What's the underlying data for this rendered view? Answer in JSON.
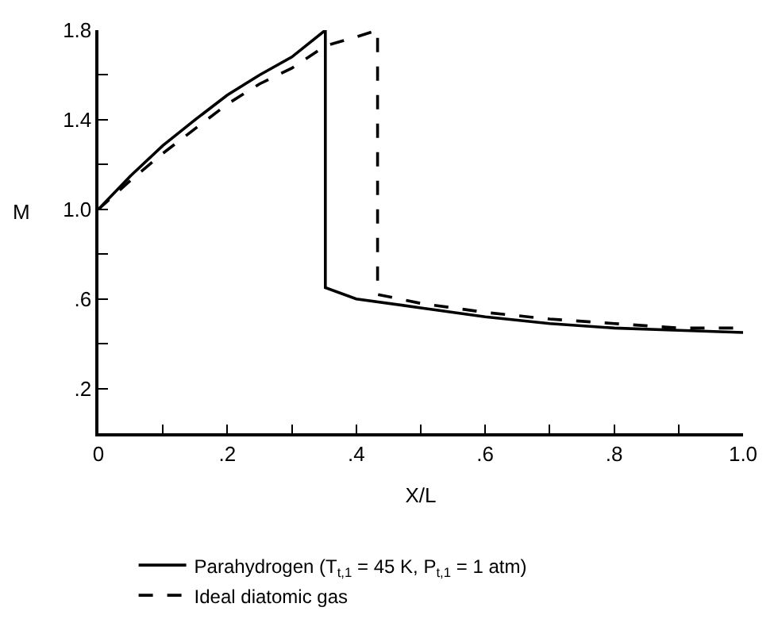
{
  "chart_data": {
    "type": "line",
    "xlabel": "X/L",
    "ylabel": "M",
    "series": [
      {
        "name": "Parahydrogen (T$_{t,1}$ = 45 K, P$_{t,1}$ = 1 atm)",
        "color": "#000000",
        "line_style": "solid",
        "x": [
          0,
          0.05,
          0.1,
          0.15,
          0.2,
          0.25,
          0.3,
          0.352,
          0.352,
          0.4,
          0.5,
          0.6,
          0.7,
          0.8,
          0.9,
          1.0
        ],
        "values": [
          1.0,
          1.15,
          1.285,
          1.4,
          1.51,
          1.6,
          1.68,
          1.8,
          0.65,
          0.6,
          0.56,
          0.52,
          0.49,
          0.47,
          0.46,
          0.45
        ]
      },
      {
        "name": "Ideal diatomic gas",
        "color": "#000000",
        "line_style": "dashed",
        "x": [
          0,
          0.05,
          0.1,
          0.15,
          0.2,
          0.25,
          0.3,
          0.352,
          0.4,
          0.433,
          0.433,
          0.5,
          0.6,
          0.7,
          0.8,
          0.9,
          1.0
        ],
        "values": [
          1.0,
          1.13,
          1.25,
          1.36,
          1.47,
          1.56,
          1.63,
          1.73,
          1.77,
          1.8,
          0.62,
          0.58,
          0.54,
          0.51,
          0.49,
          0.47,
          0.47
        ]
      }
    ],
    "xlim": [
      0,
      1.0
    ],
    "ylim": [
      0,
      1.8
    ],
    "xticks": [
      {
        "value": 0,
        "label": "0"
      },
      {
        "value": 0.1,
        "label": null
      },
      {
        "value": 0.2,
        "label": ".2"
      },
      {
        "value": 0.3,
        "label": null
      },
      {
        "value": 0.4,
        "label": ".4"
      },
      {
        "value": 0.5,
        "label": null
      },
      {
        "value": 0.6,
        "label": ".6"
      },
      {
        "value": 0.7,
        "label": null
      },
      {
        "value": 0.8,
        "label": ".8"
      },
      {
        "value": 0.9,
        "label": null
      },
      {
        "value": 1.0,
        "label": "1.0"
      }
    ],
    "yticks": [
      {
        "value": 0.2,
        "label": ".2"
      },
      {
        "value": 0.4,
        "label": null
      },
      {
        "value": 0.6,
        "label": ".6"
      },
      {
        "value": 0.8,
        "label": null
      },
      {
        "value": 1.0,
        "label": "1.0"
      },
      {
        "value": 1.2,
        "label": null
      },
      {
        "value": 1.4,
        "label": "1.4"
      },
      {
        "value": 1.6,
        "label": null
      },
      {
        "value": 1.8,
        "label": "1.8"
      }
    ],
    "legend": "bottom",
    "marker": "none"
  }
}
